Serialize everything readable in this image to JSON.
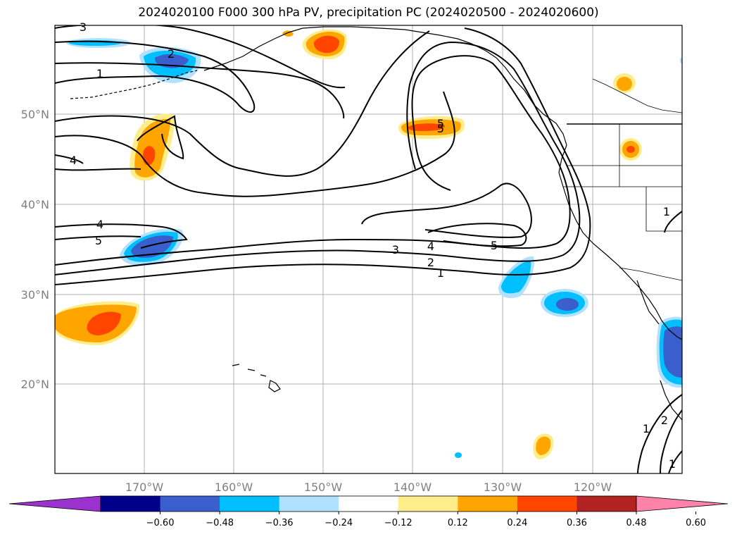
{
  "title": "2024020100 F000 300 hPa PV, precipitation PC (2024020500 - 2024020600)",
  "latitude_labels": [
    "20°N",
    "30°N",
    "40°N",
    "50°N"
  ],
  "longitude_labels": [
    "170°W",
    "160°W",
    "150°W",
    "140°W",
    "130°W",
    "120°W"
  ],
  "colorbar": {
    "tick_labels": [
      "−0.60",
      "−0.48",
      "−0.36",
      "−0.24",
      "−0.12",
      "0.12",
      "0.24",
      "0.36",
      "0.48",
      "0.60"
    ],
    "colors": [
      "#9a32cd",
      "#00008b",
      "#3a5fcd",
      "#00bfff",
      "#b0e2ff",
      "#ffffff",
      "#ffec8b",
      "#ffa500",
      "#ff4500",
      "#b22222",
      "#ff82ab"
    ]
  },
  "contour_labels": [
    "1",
    "2",
    "3",
    "4",
    "5",
    "4",
    "5",
    "3",
    "4",
    "5",
    "2",
    "1",
    "5",
    "1",
    "1",
    "1",
    "2"
  ],
  "legend_colors": {
    "precip_negative_light": "#b0e2ff",
    "precip_negative_mid": "#00bfff",
    "precip_negative_strong": "#3a5fcd",
    "precip_positive_light": "#ffec8b",
    "precip_positive_mid": "#ffa500",
    "precip_positive_strong": "#ff4500",
    "pv_contour": "#000000",
    "gridline": "#b0b0b0"
  }
}
